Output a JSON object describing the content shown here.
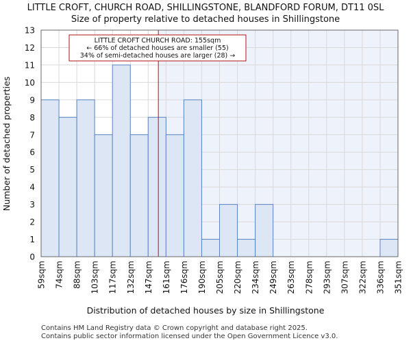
{
  "chart_data": {
    "type": "bar",
    "title": "LITTLE CROFT, CHURCH ROAD, SHILLINGSTONE, BLANDFORD FORUM, DT11 0SL",
    "subtitle": "Size of property relative to detached houses in Shillingstone",
    "xlabel": "Distribution of detached houses by size in Shillingstone",
    "ylabel": "Number of detached properties",
    "x_ticks": [
      "59sqm",
      "74sqm",
      "88sqm",
      "103sqm",
      "117sqm",
      "132sqm",
      "147sqm",
      "161sqm",
      "176sqm",
      "190sqm",
      "205sqm",
      "220sqm",
      "234sqm",
      "249sqm",
      "263sqm",
      "278sqm",
      "293sqm",
      "307sqm",
      "322sqm",
      "336sqm",
      "351sqm"
    ],
    "values": [
      9,
      8,
      9,
      7,
      11,
      7,
      8,
      7,
      9,
      1,
      3,
      1,
      3,
      0,
      0,
      0,
      0,
      0,
      0,
      1
    ],
    "ylim": [
      0,
      13
    ],
    "y_ticks": [
      0,
      1,
      2,
      3,
      4,
      5,
      6,
      7,
      8,
      9,
      10,
      11,
      12,
      13
    ],
    "grid": true,
    "marker_value_sqm": 155,
    "annotation": {
      "line1": "LITTLE CROFT CHURCH ROAD: 155sqm",
      "line2": "← 66% of detached houses are smaller (55)",
      "line3": "34% of semi-detached houses are larger (28) →"
    },
    "colors": {
      "bar_fill": "#dce6f5",
      "bar_stroke": "#5a84c2",
      "highlight_bg": "#eef2fa",
      "marker": "#b01010",
      "grid": "#d9d9d9"
    }
  },
  "footer": {
    "line1": "Contains HM Land Registry data © Crown copyright and database right 2025.",
    "line2": "Contains public sector information licensed under the Open Government Licence v3.0."
  }
}
